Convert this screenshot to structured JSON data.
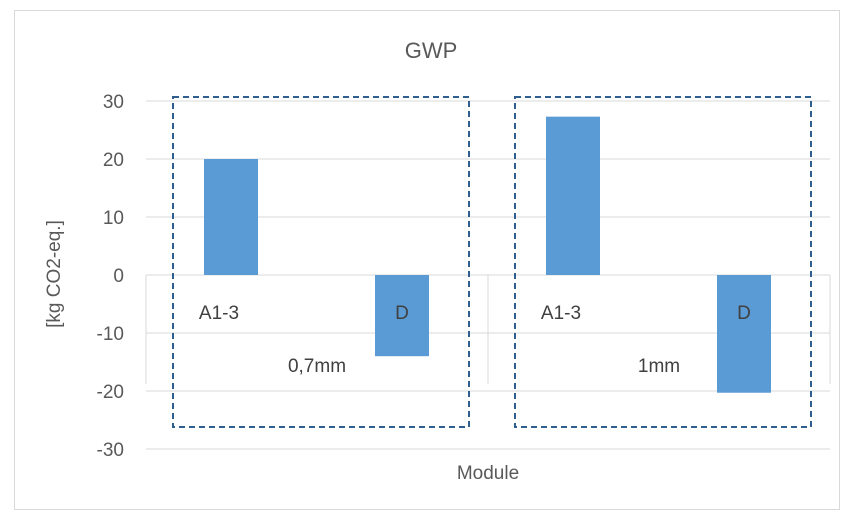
{
  "chart_data": {
    "type": "bar",
    "title": "GWP",
    "xlabel": "Module",
    "ylabel": "[kg CO2-eq.]",
    "ylim": [
      -30,
      30
    ],
    "yticks": [
      30,
      20,
      10,
      0,
      -10,
      -20,
      -30
    ],
    "grid": true,
    "legend": "none",
    "bar_color": "#5b9bd5",
    "box_color": "#2e5f8f",
    "groups": [
      {
        "label": "0,7mm",
        "bars": [
          {
            "label": "A1-3",
            "value": 20
          },
          {
            "label": "D",
            "value": -14
          }
        ]
      },
      {
        "label": "1mm",
        "bars": [
          {
            "label": "A1-3",
            "value": 27.3
          },
          {
            "label": "D",
            "value": -20.3
          }
        ]
      }
    ]
  }
}
